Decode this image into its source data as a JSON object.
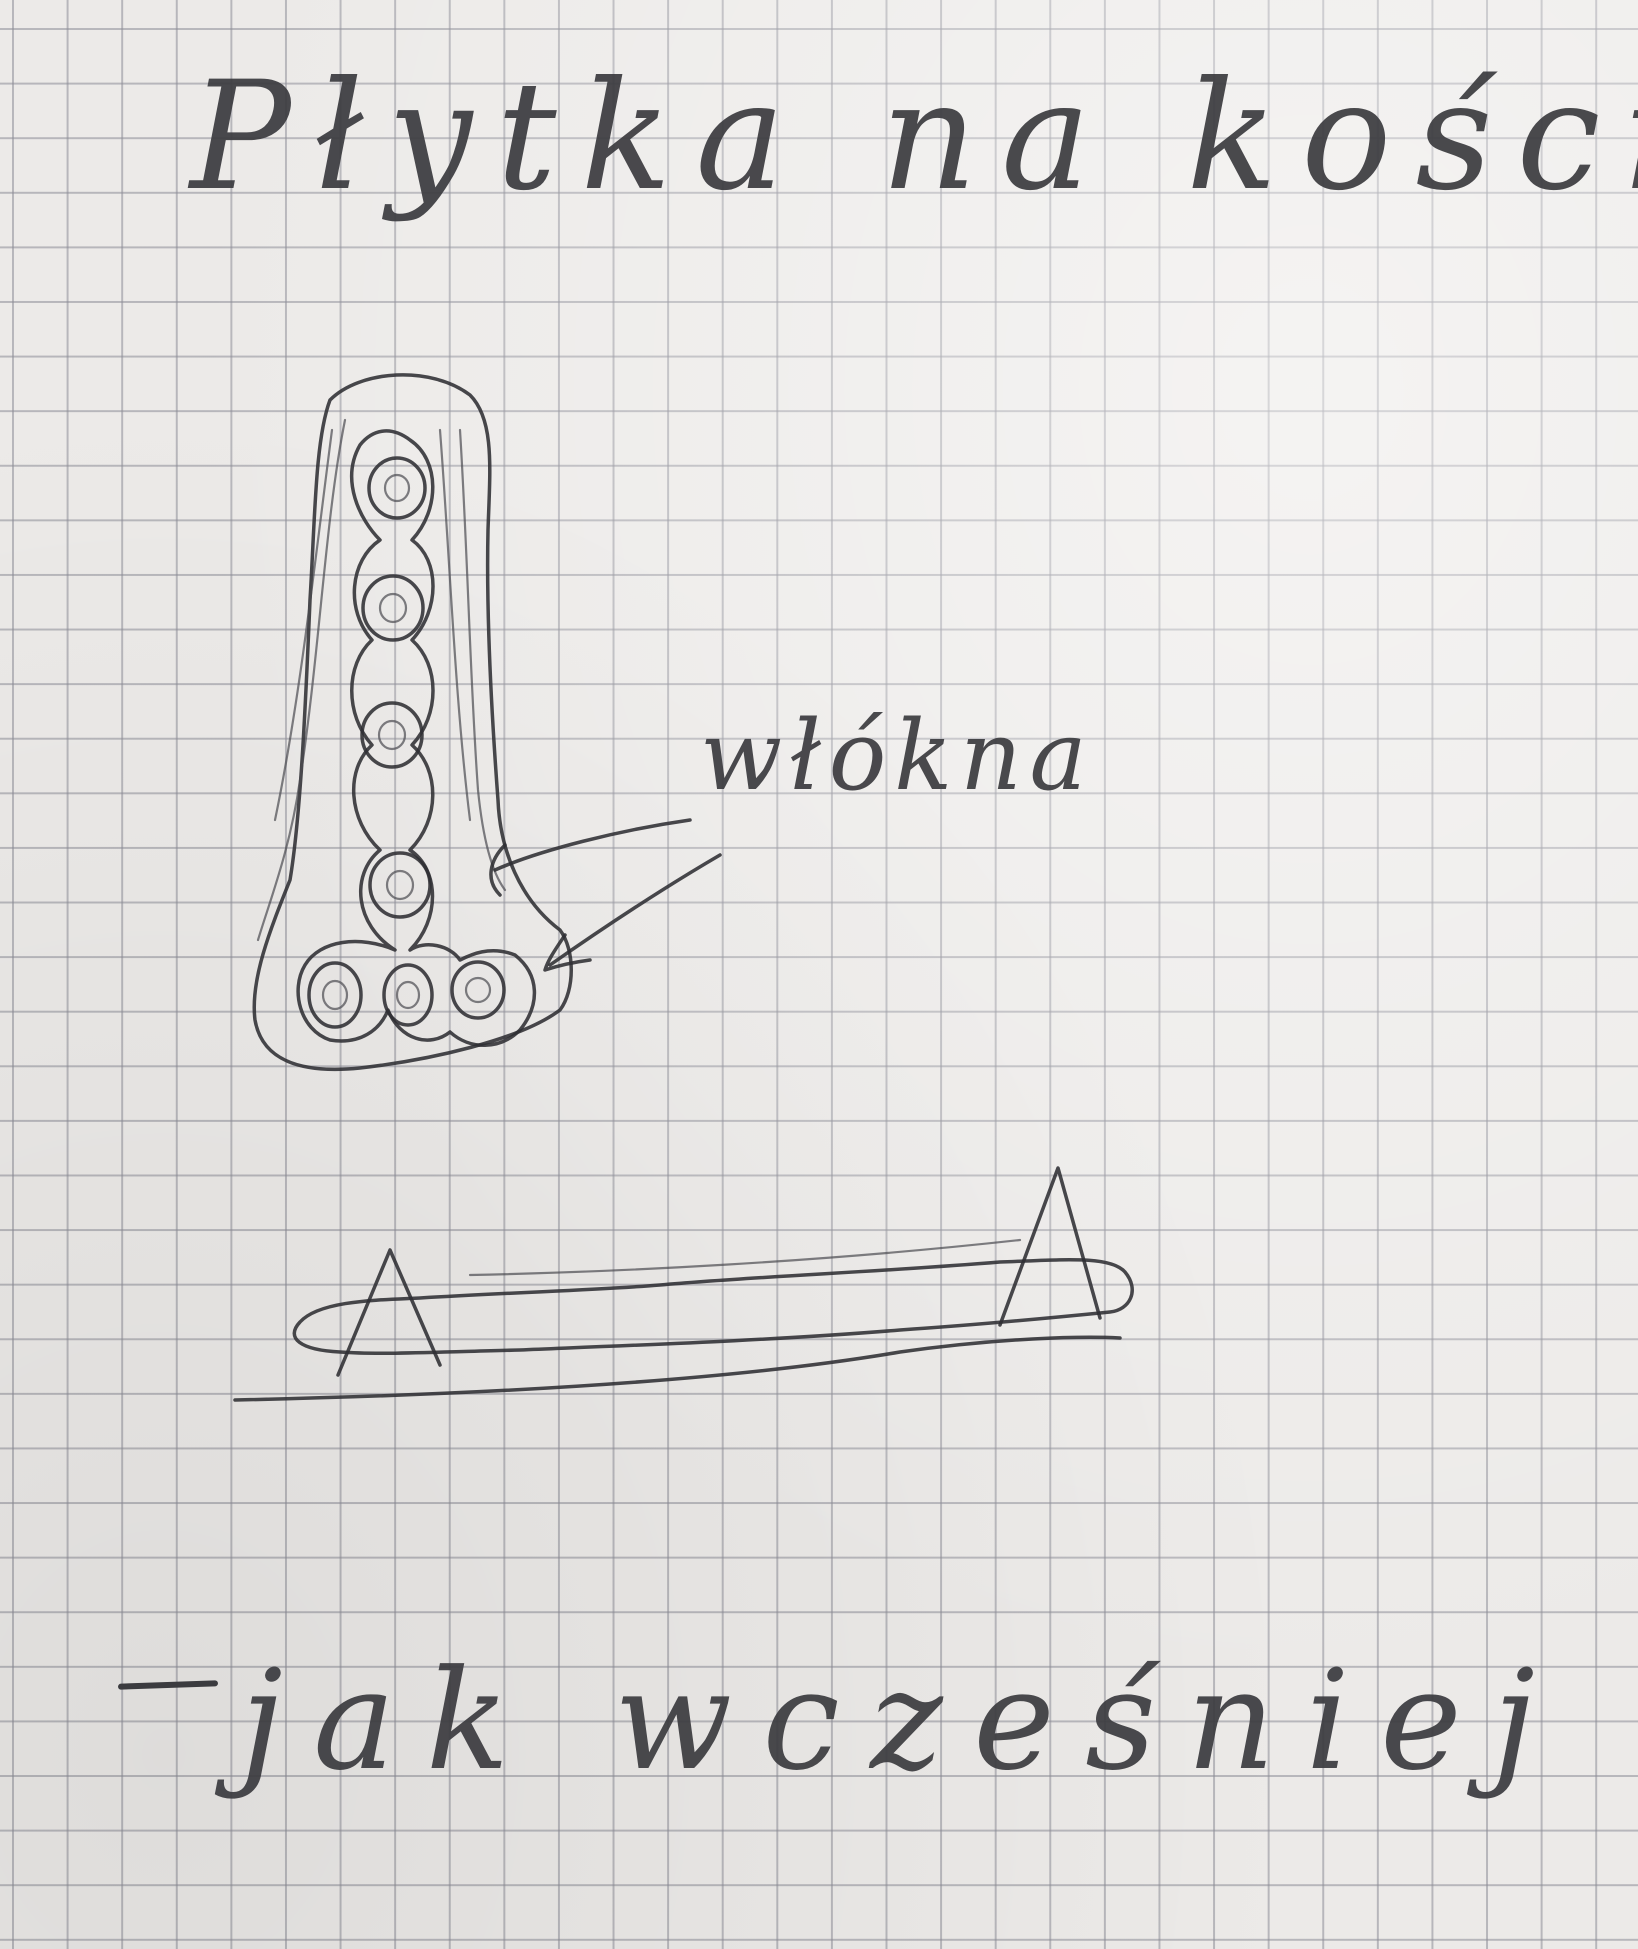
{
  "paper": {
    "background": "#eceae8",
    "grid_color": "#8c8c96",
    "ink_color": "#2f2f33"
  },
  "title": "Płytka na kości",
  "label_fibers": "włókna",
  "caption": "jak wcześniej"
}
